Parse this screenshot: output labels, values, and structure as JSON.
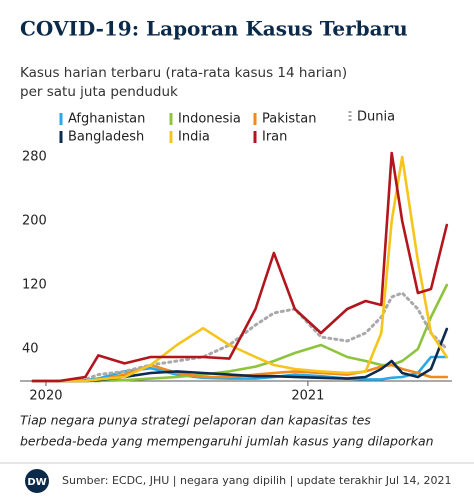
{
  "chart_data": {
    "type": "line",
    "title": "COVID-19: Laporan Kasus Terbaru",
    "subtitle": [
      "Kasus harian terbaru (rata-rata kasus 14 harian)",
      "per satu juta penduduk"
    ],
    "x": [
      2019.95,
      2020.05,
      2020.15,
      2020.2,
      2020.3,
      2020.4,
      2020.5,
      2020.6,
      2020.7,
      2020.8,
      2020.87,
      2020.95,
      2021.05,
      2021.15,
      2021.22,
      2021.28,
      2021.32,
      2021.36,
      2021.42,
      2021.47,
      2021.53
    ],
    "xlim": [
      2019.92,
      2021.55
    ],
    "xticks": [
      2020,
      2021
    ],
    "ylim": [
      0,
      290
    ],
    "yticks": [
      40,
      120,
      200,
      280
    ],
    "grid": false,
    "series": [
      {
        "name": "Afghanistan",
        "color": "#29a9e6",
        "values": [
          0,
          0,
          1,
          3,
          12,
          16,
          8,
          4,
          3,
          3,
          5,
          8,
          6,
          3,
          2,
          2,
          4,
          5,
          10,
          30,
          30
        ]
      },
      {
        "name": "Indonesia",
        "color": "#8cc43c",
        "values": [
          0,
          0,
          0,
          0,
          1,
          3,
          5,
          8,
          12,
          18,
          25,
          35,
          45,
          30,
          25,
          20,
          20,
          25,
          40,
          80,
          120
        ]
      },
      {
        "name": "Pakistan",
        "color": "#f0891e",
        "values": [
          0,
          0,
          0,
          1,
          8,
          20,
          10,
          5,
          5,
          8,
          10,
          12,
          10,
          8,
          12,
          18,
          20,
          15,
          10,
          5,
          5
        ]
      },
      {
        "name": "Dunia",
        "color": "#a9a9a9",
        "dashed": true,
        "values": [
          0,
          0,
          2,
          8,
          12,
          20,
          25,
          30,
          45,
          70,
          85,
          90,
          55,
          50,
          60,
          80,
          105,
          110,
          90,
          60,
          40
        ]
      },
      {
        "name": "Bangladesh",
        "color": "#0d2a4f",
        "values": [
          0,
          0,
          0,
          1,
          5,
          10,
          12,
          10,
          8,
          6,
          6,
          5,
          4,
          3,
          5,
          15,
          25,
          10,
          5,
          15,
          65
        ]
      },
      {
        "name": "India",
        "color": "#f5c51c",
        "values": [
          0,
          0,
          0,
          2,
          5,
          20,
          45,
          66,
          45,
          30,
          20,
          15,
          12,
          10,
          12,
          60,
          200,
          280,
          150,
          60,
          30
        ]
      },
      {
        "name": "Iran",
        "color": "#b3151d",
        "values": [
          0,
          0,
          5,
          32,
          22,
          30,
          30,
          30,
          28,
          90,
          160,
          90,
          60,
          90,
          100,
          95,
          285,
          200,
          110,
          115,
          195
        ]
      }
    ],
    "note": [
      "Tiap negara punya strategi pelaporan dan kapasitas tes",
      "berbeda-beda yang mempengaruhi jumlah kasus yang dilaporkan"
    ],
    "source": "Sumber: ECDC, JHU | negara yang dipilih | update terakhir Jul 14, 2021",
    "logo": "DW"
  }
}
